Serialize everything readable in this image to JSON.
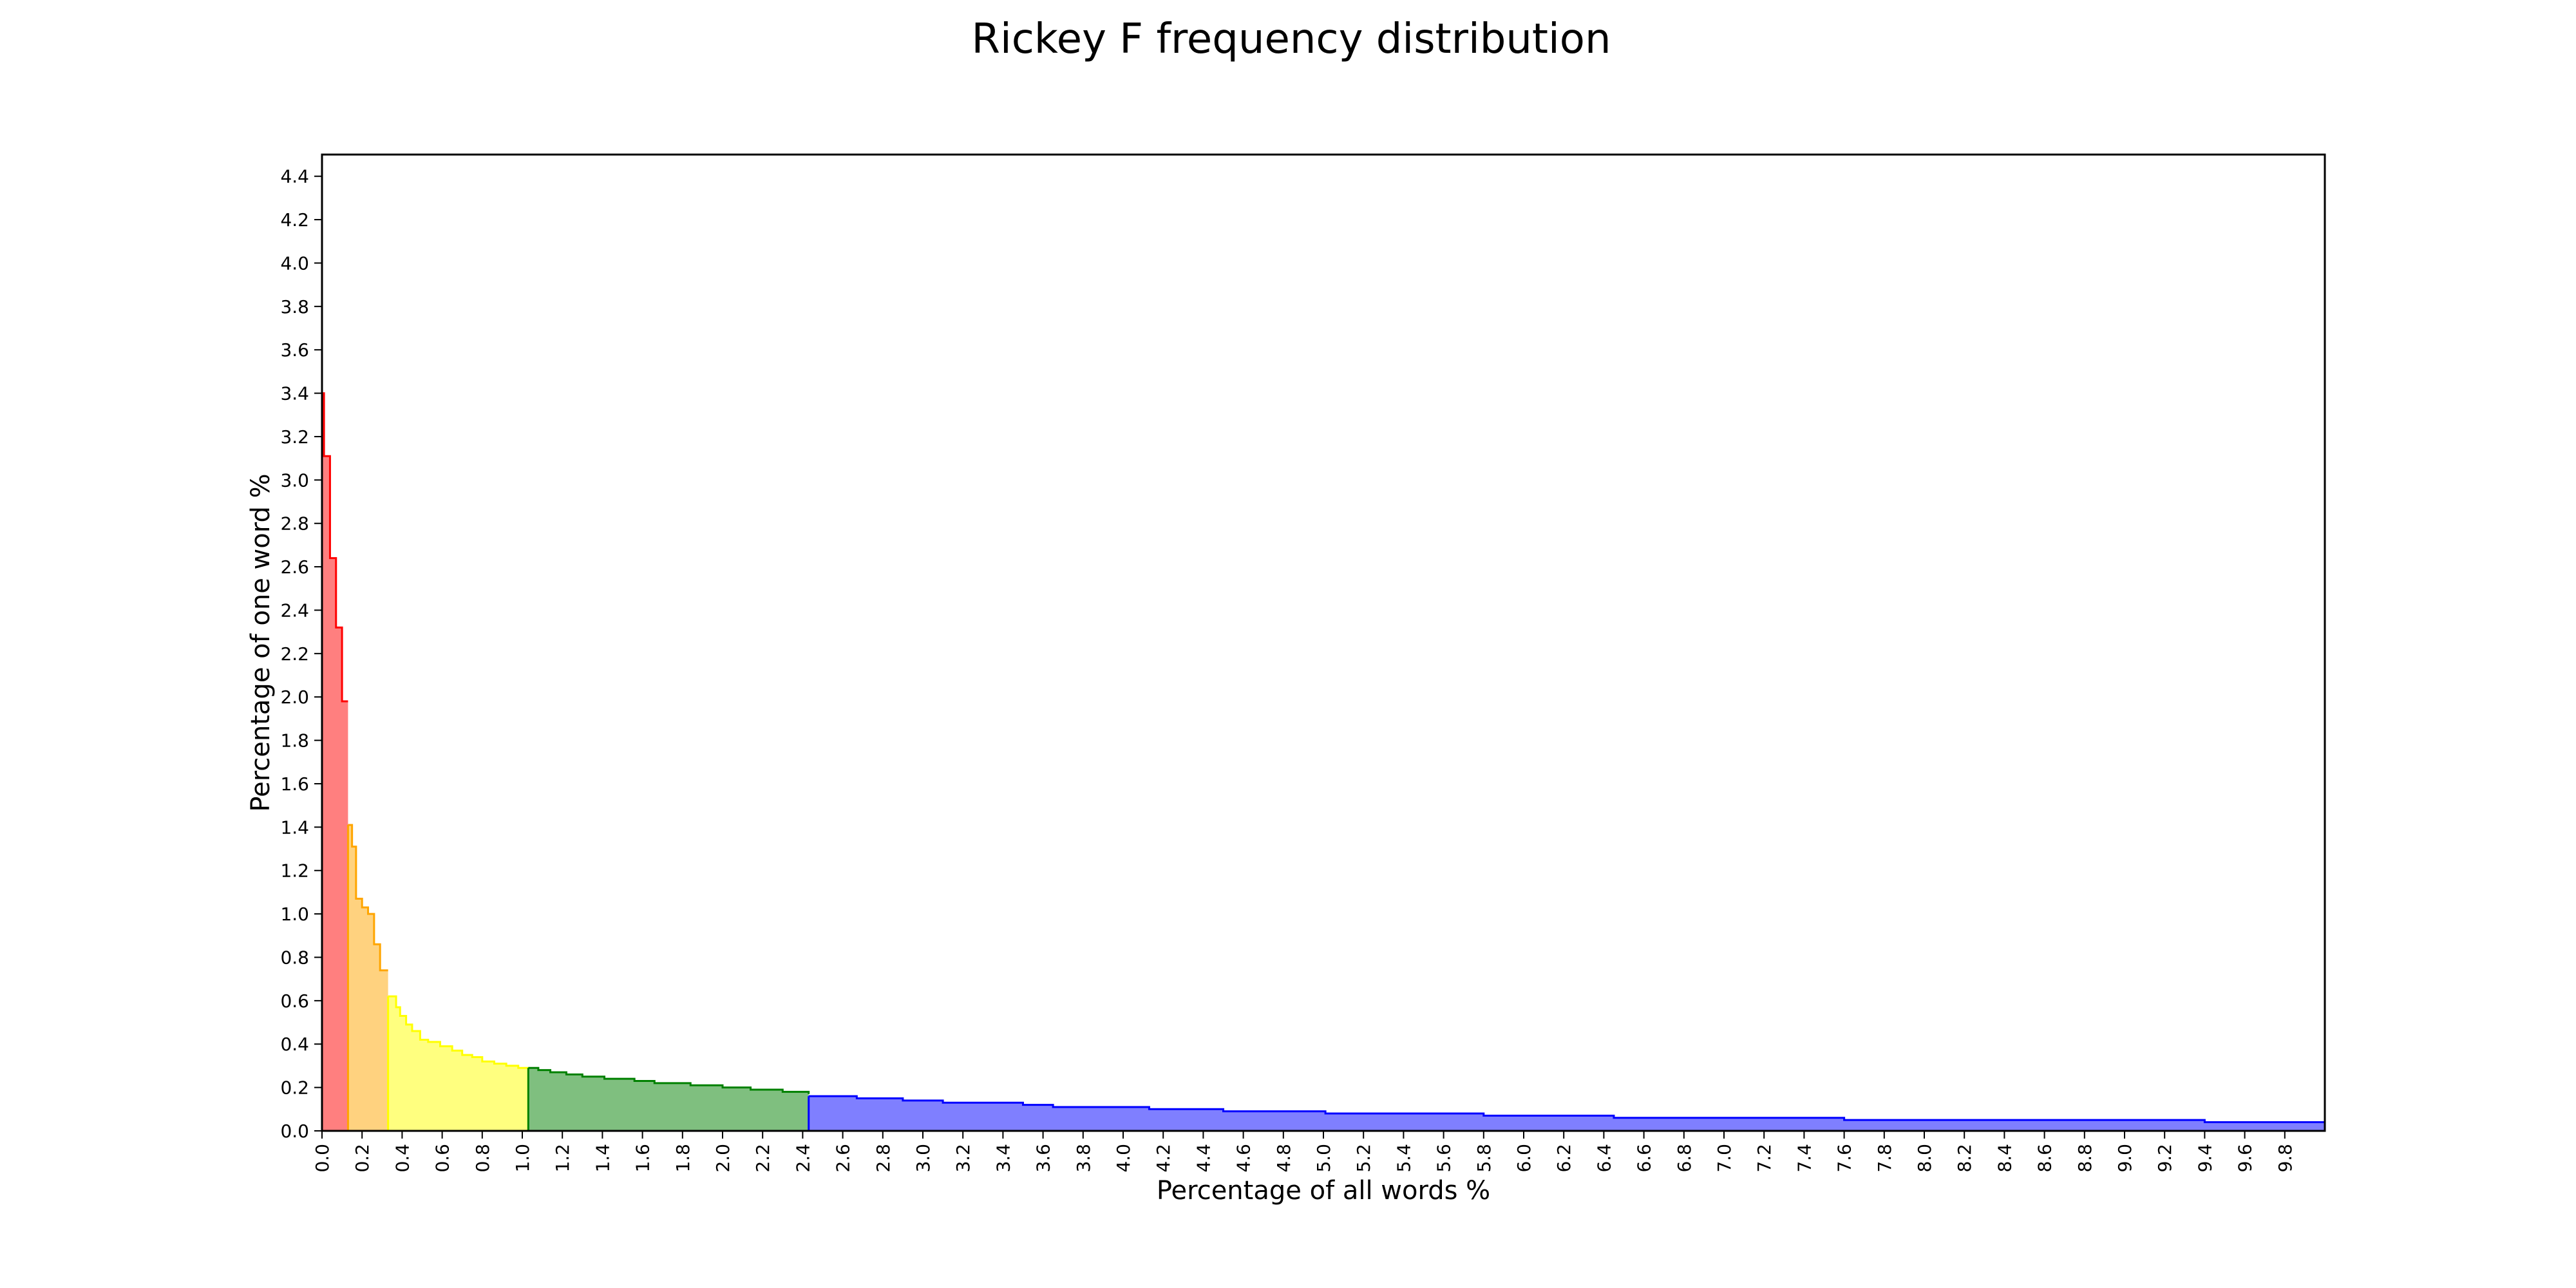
{
  "chart_data": {
    "type": "area",
    "title": "Rickey F frequency distribution",
    "xlabel": "Percentage of all words %",
    "ylabel": "Percentage of one word %",
    "xlim": [
      0,
      10
    ],
    "ylim": [
      0,
      4.5
    ],
    "x_ticks": [
      "0.0",
      "0.2",
      "0.4",
      "0.6",
      "0.8",
      "1.0",
      "1.2",
      "1.4",
      "1.6",
      "1.8",
      "2.0",
      "2.2",
      "2.4",
      "2.6",
      "2.8",
      "3.0",
      "3.2",
      "3.4",
      "3.6",
      "3.8",
      "4.0",
      "4.2",
      "4.4",
      "4.6",
      "4.8",
      "5.0",
      "5.2",
      "5.4",
      "5.6",
      "5.8",
      "6.0",
      "6.2",
      "6.4",
      "6.6",
      "6.8",
      "7.0",
      "7.2",
      "7.4",
      "7.6",
      "7.8",
      "8.0",
      "8.2",
      "8.4",
      "8.6",
      "8.8",
      "9.0",
      "9.2",
      "9.4",
      "9.6",
      "9.8"
    ],
    "y_ticks": [
      "0.0",
      "0.2",
      "0.4",
      "0.6",
      "0.8",
      "1.0",
      "1.2",
      "1.4",
      "1.6",
      "1.8",
      "2.0",
      "2.2",
      "2.4",
      "2.6",
      "2.8",
      "3.0",
      "3.2",
      "3.4",
      "3.6",
      "3.8",
      "4.0",
      "4.2",
      "4.4"
    ],
    "grid": false,
    "legend": "none",
    "series": [
      {
        "color": "#ff0000",
        "fill": "#ff7f7f",
        "x": [
          0.0,
          0.01,
          0.04,
          0.07,
          0.1,
          0.13
        ],
        "y": [
          3.4,
          3.11,
          2.64,
          2.32,
          1.98,
          1.98
        ]
      },
      {
        "color": "#ffa500",
        "fill": "#ffd27f",
        "x": [
          0.13,
          0.15,
          0.17,
          0.2,
          0.23,
          0.26,
          0.29,
          0.31,
          0.33
        ],
        "y": [
          1.41,
          1.31,
          1.07,
          1.03,
          1.0,
          0.86,
          0.74,
          0.74,
          0.74
        ]
      },
      {
        "color": "#ffff00",
        "fill": "#ffff7f",
        "x": [
          0.33,
          0.37,
          0.39,
          0.42,
          0.45,
          0.49,
          0.53,
          0.59,
          0.65,
          0.7,
          0.75,
          0.8,
          0.86,
          0.92,
          0.98,
          1.03
        ],
        "y": [
          0.62,
          0.57,
          0.53,
          0.49,
          0.46,
          0.42,
          0.41,
          0.39,
          0.37,
          0.35,
          0.34,
          0.32,
          0.31,
          0.3,
          0.29,
          0.29
        ]
      },
      {
        "color": "#008000",
        "fill": "#7fbf7f",
        "x": [
          1.03,
          1.08,
          1.14,
          1.22,
          1.3,
          1.41,
          1.56,
          1.66,
          1.84,
          2.0,
          2.14,
          2.3,
          2.43
        ],
        "y": [
          0.29,
          0.28,
          0.27,
          0.26,
          0.25,
          0.24,
          0.23,
          0.22,
          0.21,
          0.2,
          0.19,
          0.18,
          0.17
        ]
      },
      {
        "color": "#0000ff",
        "fill": "#7f7fff",
        "x": [
          2.43,
          2.67,
          2.9,
          3.1,
          3.5,
          3.65,
          4.13,
          4.5,
          5.01,
          5.8,
          6.45,
          7.6,
          9.4,
          10.0
        ],
        "y": [
          0.16,
          0.15,
          0.14,
          0.13,
          0.12,
          0.11,
          0.1,
          0.09,
          0.08,
          0.07,
          0.06,
          0.05,
          0.04,
          0.04
        ]
      }
    ]
  }
}
